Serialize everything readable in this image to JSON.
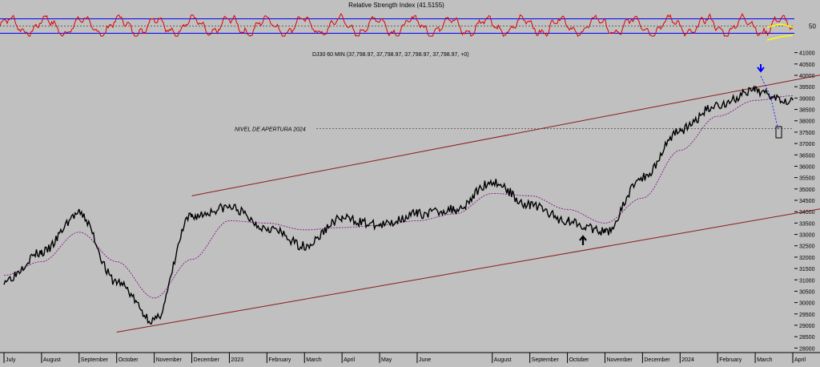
{
  "colors": {
    "background": "#c0c0c0",
    "rsi_line": "#e00000",
    "rsi_bounds": "#0000ff",
    "price": "#000000",
    "moving_average": "#800080",
    "channel": "#8b1a1a",
    "annotation_arrow_up": "#000000",
    "annotation_arrow_down": "#0000ff",
    "yellow_marker": "#ffff00"
  },
  "chart_data": [
    {
      "type": "line",
      "panel": "rsi",
      "title": "Relative Strength Index (41.5155)",
      "y_tick_labels": [
        "50"
      ],
      "ylim": [
        0,
        100
      ],
      "bounds": [
        30,
        70
      ],
      "midline": 50
    },
    {
      "type": "line",
      "panel": "price",
      "title": "DJ30 60 MIN (37,798.97, 37,798.97, 37,798.97, 37,798.97, +0)",
      "ylim": [
        27800,
        41200
      ],
      "y_tick_labels": [
        "41000",
        "40500",
        "40000",
        "39500",
        "39000",
        "38500",
        "38000",
        "37500",
        "37000",
        "36500",
        "36000",
        "35500",
        "35000",
        "34500",
        "34000",
        "33500",
        "33000",
        "32500",
        "32000",
        "31500",
        "31000",
        "30500",
        "30000",
        "29500",
        "29000",
        "28500",
        "28000"
      ],
      "x_tick_labels": [
        "July",
        "August",
        "September",
        "October",
        "November",
        "December",
        "2023",
        "February",
        "March",
        "April",
        "May",
        "June",
        "August",
        "September",
        "October",
        "November",
        "December",
        "2024",
        "February",
        "March",
        "April"
      ],
      "x": [
        "2022-07",
        "2022-08",
        "2022-09",
        "2022-10",
        "2022-11",
        "2022-12",
        "2023-01",
        "2023-02",
        "2023-03",
        "2023-04",
        "2023-05",
        "2023-06",
        "2023-07",
        "2023-08",
        "2023-09",
        "2023-10",
        "2023-11",
        "2023-12",
        "2024-01",
        "2024-02",
        "2024-03",
        "2024-04"
      ],
      "series": [
        {
          "values": [
            31000,
            32200,
            33900,
            30900,
            29200,
            33800,
            34200,
            33300,
            32500,
            33700,
            33400,
            33900,
            34100,
            35300,
            34300,
            33600,
            33100,
            35500,
            37600,
            38700,
            39300,
            38900
          ]
        },
        {
          "values": [
            31200,
            31800,
            33100,
            31800,
            30200,
            31900,
            33600,
            33500,
            33200,
            33300,
            33400,
            33600,
            33900,
            34800,
            34700,
            34100,
            33500,
            34600,
            36700,
            38200,
            38900,
            39100
          ]
        }
      ],
      "channel_upper": {
        "start": [
          "2022-12",
          34700
        ],
        "end": [
          "2024-05",
          40100
        ]
      },
      "channel_lower": {
        "start": [
          "2022-10",
          28700
        ],
        "end": [
          "2024-05",
          34200
        ]
      },
      "reference_line": {
        "label": "NIVEL DE APERTURA 2024",
        "value": 37650
      }
    }
  ]
}
